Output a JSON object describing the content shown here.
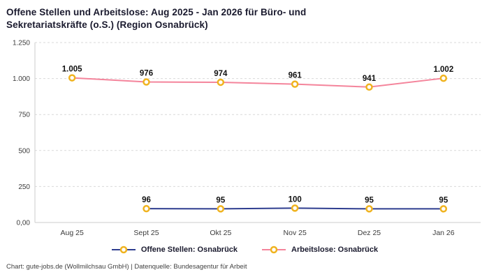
{
  "title": "Offene Stellen und Arbeitslose: Aug 2025 - Jan 2026 für Büro- und Sekretariatskräfte (o.S.) (Region Osnabrück)",
  "footer": "Chart: gute-jobs.de (Wollmilchsau GmbH) | Datenquelle: Bundesagentur für Arbeit",
  "colors": {
    "offene_stellen": "#2e3d8f",
    "arbeitslose": "#f4849b",
    "marker_fill": "#ffffff",
    "marker_stroke": "#f0b31f",
    "grid": "#d9d9d9",
    "axis": "#cccccc",
    "tick_text": "#3c3c3c",
    "label_text": "#111111",
    "title_text": "#1a1a2e"
  },
  "chart_data": {
    "type": "line",
    "title": "Offene Stellen und Arbeitslose: Aug 2025 - Jan 2026 für Büro- und Sekretariatskräfte (o.S.) (Region Osnabrück)",
    "categories": [
      "Aug 25",
      "Sept 25",
      "Okt 25",
      "Nov 25",
      "Dez 25",
      "Jan 26"
    ],
    "series": [
      {
        "name": "Offene Stellen: Osnabrück",
        "color": "#2e3d8f",
        "values": [
          null,
          96,
          95,
          100,
          95,
          95
        ],
        "labels": [
          "",
          "96",
          "95",
          "100",
          "95",
          "95"
        ]
      },
      {
        "name": "Arbeitslose: Osnabrück",
        "color": "#f4849b",
        "values": [
          1005,
          976,
          974,
          961,
          941,
          1002
        ],
        "labels": [
          "1.005",
          "976",
          "974",
          "961",
          "941",
          "1.002"
        ]
      }
    ],
    "xlabel": "",
    "ylabel": "",
    "ylim": [
      0,
      1250
    ],
    "yticks": [
      0,
      250,
      500,
      750,
      1000,
      1250
    ],
    "ytick_labels": [
      "0,00",
      "250",
      "500",
      "750",
      "1.000",
      "1.250"
    ],
    "grid": true,
    "grid_style": "dashed",
    "legend_position": "bottom"
  }
}
